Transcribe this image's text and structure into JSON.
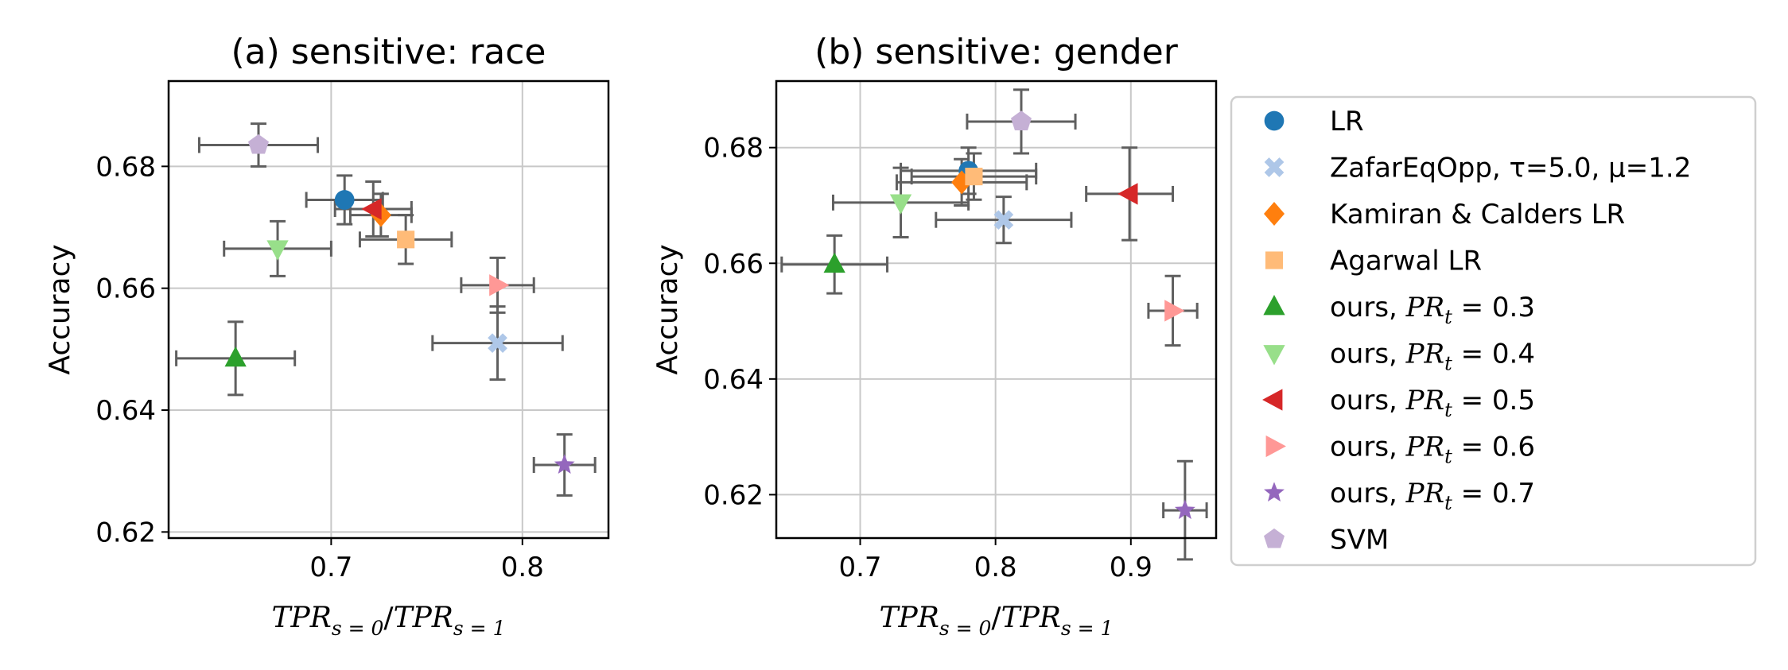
{
  "chart_data": [
    {
      "type": "scatter",
      "title": "(a) sensitive: race",
      "xlabel_parts": {
        "main": "TPR",
        "sub0": "s = 0",
        "sep": "/",
        "main2": "TPR",
        "sub1": "s = 1"
      },
      "ylabel": "Accuracy",
      "xlim": [
        0.615,
        0.845
      ],
      "ylim": [
        0.619,
        0.694
      ],
      "xticks": [
        0.7,
        0.8
      ],
      "xtick_labels": [
        "0.7",
        "0.8"
      ],
      "yticks": [
        0.62,
        0.64,
        0.66,
        0.68
      ],
      "ytick_labels": [
        "0.62",
        "0.64",
        "0.66",
        "0.68"
      ],
      "grid": true,
      "points": [
        {
          "series": "LR",
          "x": 0.707,
          "y": 0.6745,
          "xerr": 0.02,
          "yerr": 0.004
        },
        {
          "series": "ZafarEqOpp",
          "x": 0.787,
          "y": 0.651,
          "xerr": 0.034,
          "yerr": 0.006
        },
        {
          "series": "Kamiran",
          "x": 0.726,
          "y": 0.672,
          "xerr": 0.016,
          "yerr": 0.0035
        },
        {
          "series": "Agarwal",
          "x": 0.739,
          "y": 0.668,
          "xerr": 0.024,
          "yerr": 0.004
        },
        {
          "series": "pr03",
          "x": 0.65,
          "y": 0.6485,
          "xerr": 0.031,
          "yerr": 0.006
        },
        {
          "series": "pr04",
          "x": 0.672,
          "y": 0.6665,
          "xerr": 0.028,
          "yerr": 0.0045
        },
        {
          "series": "pr05",
          "x": 0.722,
          "y": 0.673,
          "xerr": 0.02,
          "yerr": 0.0045
        },
        {
          "series": "pr06",
          "x": 0.787,
          "y": 0.6605,
          "xerr": 0.019,
          "yerr": 0.0045
        },
        {
          "series": "pr07",
          "x": 0.822,
          "y": 0.631,
          "xerr": 0.016,
          "yerr": 0.005
        },
        {
          "series": "SVM",
          "x": 0.662,
          "y": 0.6835,
          "xerr": 0.031,
          "yerr": 0.0035
        }
      ]
    },
    {
      "type": "scatter",
      "title": "(b) sensitive: gender",
      "xlabel_parts": {
        "main": "TPR",
        "sub0": "s = 0",
        "sep": "/",
        "main2": "TPR",
        "sub1": "s = 1"
      },
      "ylabel": "Accuracy",
      "xlim": [
        0.638,
        0.963
      ],
      "ylim": [
        0.6125,
        0.6915
      ],
      "xticks": [
        0.7,
        0.8,
        0.9
      ],
      "xtick_labels": [
        "0.7",
        "0.8",
        "0.9"
      ],
      "yticks": [
        0.62,
        0.64,
        0.66,
        0.68
      ],
      "ytick_labels": [
        "0.62",
        "0.64",
        "0.66",
        "0.68"
      ],
      "grid": true,
      "points": [
        {
          "series": "LR",
          "x": 0.78,
          "y": 0.676,
          "xerr": 0.05,
          "yerr": 0.004
        },
        {
          "series": "ZafarEqOpp",
          "x": 0.806,
          "y": 0.6675,
          "xerr": 0.05,
          "yerr": 0.004
        },
        {
          "series": "Kamiran",
          "x": 0.775,
          "y": 0.674,
          "xerr": 0.048,
          "yerr": 0.004
        },
        {
          "series": "Agarwal",
          "x": 0.784,
          "y": 0.675,
          "xerr": 0.046,
          "yerr": 0.004
        },
        {
          "series": "pr03",
          "x": 0.681,
          "y": 0.6598,
          "xerr": 0.039,
          "yerr": 0.005
        },
        {
          "series": "pr04",
          "x": 0.73,
          "y": 0.6705,
          "xerr": 0.05,
          "yerr": 0.006
        },
        {
          "series": "pr05",
          "x": 0.899,
          "y": 0.672,
          "xerr": 0.032,
          "yerr": 0.008
        },
        {
          "series": "pr06",
          "x": 0.931,
          "y": 0.6518,
          "xerr": 0.018,
          "yerr": 0.006
        },
        {
          "series": "pr07",
          "x": 0.94,
          "y": 0.6173,
          "xerr": 0.016,
          "yerr": 0.0085
        },
        {
          "series": "SVM",
          "x": 0.819,
          "y": 0.6845,
          "xerr": 0.04,
          "yerr": 0.0055
        }
      ]
    }
  ],
  "legend": {
    "placement": "right",
    "entries": [
      {
        "key": "LR",
        "label": "LR",
        "color": "#1f77b4",
        "marker": "circle"
      },
      {
        "key": "ZafarEqOpp",
        "label": "ZafarEqOpp, τ=5.0, μ=1.2",
        "color": "#aec7e8",
        "marker": "x"
      },
      {
        "key": "Kamiran",
        "label": "Kamiran & Calders LR",
        "color": "#ff7f0e",
        "marker": "diamond"
      },
      {
        "key": "Agarwal",
        "label": "Agarwal LR",
        "color": "#ffbb78",
        "marker": "square"
      },
      {
        "key": "pr03",
        "label_prefix": "ours, ",
        "label_math": "PR",
        "label_sub": "t",
        "label_value": " = 0.3",
        "color": "#2ca02c",
        "marker": "triangle-up"
      },
      {
        "key": "pr04",
        "label_prefix": "ours, ",
        "label_math": "PR",
        "label_sub": "t",
        "label_value": " = 0.4",
        "color": "#98df8a",
        "marker": "triangle-down"
      },
      {
        "key": "pr05",
        "label_prefix": "ours, ",
        "label_math": "PR",
        "label_sub": "t",
        "label_value": " = 0.5",
        "color": "#d62728",
        "marker": "triangle-left"
      },
      {
        "key": "pr06",
        "label_prefix": "ours, ",
        "label_math": "PR",
        "label_sub": "t",
        "label_value": " = 0.6",
        "color": "#ff9896",
        "marker": "triangle-right"
      },
      {
        "key": "pr07",
        "label_prefix": "ours, ",
        "label_math": "PR",
        "label_sub": "t",
        "label_value": " = 0.7",
        "color": "#9467bd",
        "marker": "star"
      },
      {
        "key": "SVM",
        "label": "SVM",
        "color": "#c5b0d5",
        "marker": "pentagon"
      }
    ]
  },
  "colors": {
    "errorbar": "#5f5f5f",
    "grid": "#c8c8c8"
  }
}
